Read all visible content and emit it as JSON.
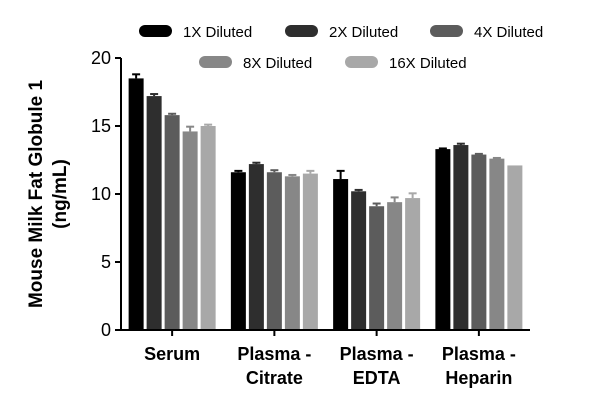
{
  "chart_data": {
    "type": "bar",
    "ylabel_lines": [
      "Mouse Milk Fat Globule 1",
      "(ng/mL)"
    ],
    "categories": [
      [
        "Serum"
      ],
      [
        "Plasma -",
        "Citrate"
      ],
      [
        "Plasma -",
        "EDTA"
      ],
      [
        "Plasma -",
        "Heparin"
      ]
    ],
    "ylim": [
      0,
      20
    ],
    "yticks": [
      0,
      5,
      10,
      15,
      20
    ],
    "grid": false,
    "legend_position": "top",
    "series": [
      {
        "name": "1X Diluted",
        "color": "#000000",
        "values": [
          18.5,
          11.6,
          11.1,
          13.3
        ],
        "errors": [
          0.3,
          0.1,
          0.6,
          0.05
        ]
      },
      {
        "name": "2X Diluted",
        "color": "#2e2e2e",
        "values": [
          17.2,
          12.2,
          10.2,
          13.6
        ],
        "errors": [
          0.15,
          0.1,
          0.1,
          0.1
        ]
      },
      {
        "name": "4X Diluted",
        "color": "#5c5c5c",
        "values": [
          15.8,
          11.6,
          9.1,
          12.9
        ],
        "errors": [
          0.1,
          0.15,
          0.2,
          0.05
        ]
      },
      {
        "name": "8X Diluted",
        "color": "#878787",
        "values": [
          14.6,
          11.3,
          9.4,
          12.6
        ],
        "errors": [
          0.35,
          0.1,
          0.35,
          0.05
        ]
      },
      {
        "name": "16X Diluted",
        "color": "#a8a8a8",
        "values": [
          15.0,
          11.5,
          9.7,
          12.1
        ],
        "errors": [
          0.1,
          0.2,
          0.35,
          0.0
        ]
      }
    ]
  }
}
